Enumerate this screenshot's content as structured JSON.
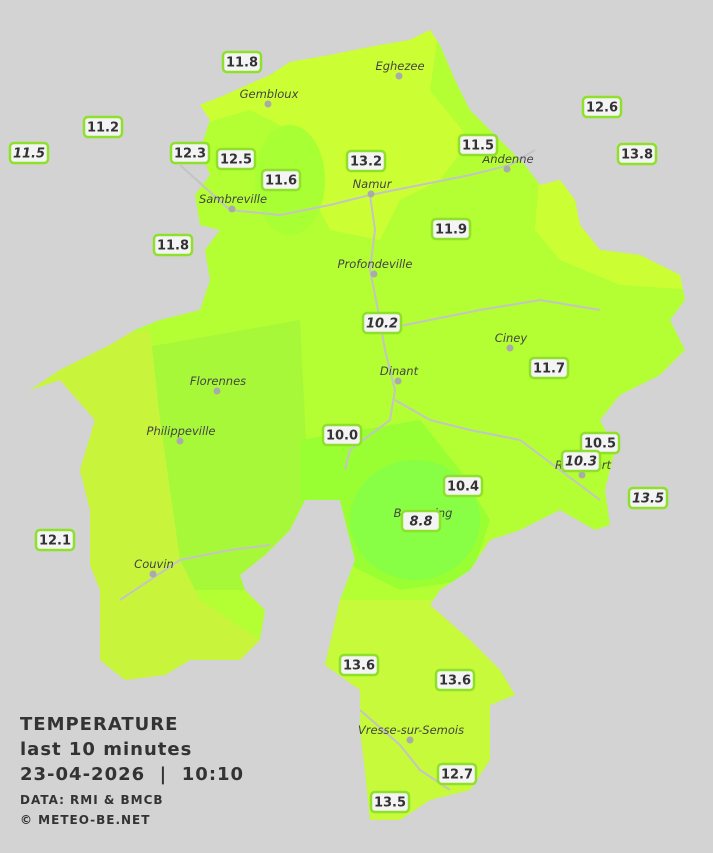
{
  "stations": [
    {
      "text": "11.8",
      "italic": false
    },
    {
      "text": "11.2",
      "italic": false
    },
    {
      "text": "11.5",
      "italic": true
    },
    {
      "text": "12.3",
      "italic": false
    },
    {
      "text": "12.5",
      "italic": false
    },
    {
      "text": "11.6",
      "italic": false
    },
    {
      "text": "13.2",
      "italic": false
    },
    {
      "text": "11.5",
      "italic": false
    },
    {
      "text": "12.6",
      "italic": false
    },
    {
      "text": "13.8",
      "italic": false
    },
    {
      "text": "11.9",
      "italic": false
    },
    {
      "text": "11.8",
      "italic": false
    },
    {
      "text": "10.2",
      "italic": true
    },
    {
      "text": "11.7",
      "italic": false
    },
    {
      "text": "10.0",
      "italic": false
    },
    {
      "text": "10.5",
      "italic": false
    },
    {
      "text": "10.3",
      "italic": true
    },
    {
      "text": "10.4",
      "italic": false
    },
    {
      "text": "13.5",
      "italic": true
    },
    {
      "text": "8.8",
      "italic": true
    },
    {
      "text": "12.1",
      "italic": false
    },
    {
      "text": "13.6",
      "italic": false
    },
    {
      "text": "13.6",
      "italic": false
    },
    {
      "text": "12.7",
      "italic": false
    },
    {
      "text": "13.5",
      "italic": false
    }
  ],
  "places": [
    "Eghezee",
    "Gembloux",
    "Andenne",
    "Namur",
    "Sambreville",
    "Profondeville",
    "Ciney",
    "Dinant",
    "Florennes",
    "Philippeville",
    "Couvin",
    "Vresse-sur-Semois",
    "Beauraing",
    "Rochefort"
  ],
  "legend": {
    "title": "TEMPERATURE",
    "subtitle": "last 10 minutes",
    "datetime": "23-04-2026  |  10:10",
    "source": "DATA: RMI & BMCB",
    "copyright": "© METEO-BE.NET"
  }
}
